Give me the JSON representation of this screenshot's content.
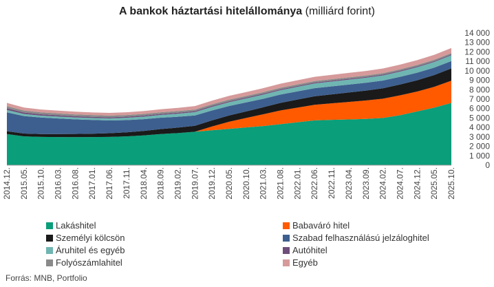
{
  "title": {
    "bold": "A bankok háztartási hitelállománya",
    "normal": " (milliárd forint)"
  },
  "source": "Forrás: MNB, Portfolio",
  "chart_data": {
    "type": "area",
    "stacked": true,
    "x": [
      "2014.12.",
      "2015.05.",
      "2015.10.",
      "2016.03.",
      "2016.08.",
      "2017.01.",
      "2017.06.",
      "2017.11.",
      "2018.04.",
      "2018.09.",
      "2019.02.",
      "2019.07.",
      "2019.12.",
      "2020.05.",
      "2020.10.",
      "2021.03.",
      "2021.08.",
      "2022.01.",
      "2022.06.",
      "2022.11.",
      "2023.04.",
      "2023.09.",
      "2024.02.",
      "2024.07.",
      "2024.12.",
      "2025.05.",
      "2025.10."
    ],
    "y_axis": {
      "position": "right",
      "min": 0,
      "max": 14000,
      "step": 1000,
      "tick_labels": [
        "0",
        "1 000",
        "2 000",
        "3 000",
        "4 000",
        "5 000",
        "6 000",
        "7 000",
        "8 000",
        "9 000",
        "10 000",
        "11 000",
        "12 000",
        "13 000",
        "14 000"
      ]
    },
    "grid": false,
    "legend_position": "bottom",
    "series": [
      {
        "name": "Lakáshitel",
        "color": "#0a9e7a",
        "values": [
          3300,
          3050,
          3000,
          2980,
          2970,
          2980,
          3000,
          3050,
          3150,
          3300,
          3400,
          3550,
          3700,
          3850,
          4000,
          4150,
          4350,
          4550,
          4750,
          4800,
          4850,
          4900,
          5000,
          5300,
          5700,
          6100,
          6600
        ]
      },
      {
        "name": "Babaváró hitel",
        "color": "#ff5a00",
        "values": [
          0,
          0,
          0,
          0,
          0,
          0,
          0,
          0,
          0,
          0,
          0,
          0,
          400,
          750,
          1000,
          1250,
          1450,
          1550,
          1650,
          1750,
          1850,
          1950,
          2050,
          2100,
          2100,
          2200,
          2350
        ]
      },
      {
        "name": "Személyi kölcsön",
        "color": "#1a1a1a",
        "values": [
          300,
          300,
          300,
          320,
          340,
          360,
          390,
          430,
          480,
          530,
          580,
          620,
          650,
          670,
          700,
          740,
          800,
          850,
          900,
          950,
          1000,
          1050,
          1100,
          1150,
          1200,
          1250,
          1300
        ]
      },
      {
        "name": "Szabad felhasználású jelzáloghitel",
        "color": "#3d5f8f",
        "values": [
          2000,
          1850,
          1750,
          1650,
          1550,
          1450,
          1350,
          1300,
          1250,
          1200,
          1150,
          1100,
          1050,
          1000,
          950,
          900,
          880,
          870,
          860,
          850,
          840,
          830,
          820,
          810,
          800,
          790,
          780
        ]
      },
      {
        "name": "Áruhitel és egyéb",
        "color": "#6fb5b2",
        "values": [
          250,
          220,
          200,
          200,
          200,
          210,
          220,
          240,
          260,
          290,
          320,
          350,
          380,
          400,
          420,
          440,
          460,
          480,
          500,
          510,
          520,
          530,
          540,
          560,
          580,
          600,
          620
        ]
      },
      {
        "name": "Autóhitel",
        "color": "#6e4e7a",
        "values": [
          180,
          160,
          150,
          140,
          130,
          125,
          120,
          118,
          115,
          113,
          112,
          110,
          108,
          106,
          104,
          102,
          100,
          99,
          98,
          97,
          96,
          95,
          94,
          93,
          92,
          91,
          90
        ]
      },
      {
        "name": "Folyószámlahitel",
        "color": "#8a8a8a",
        "values": [
          220,
          210,
          200,
          195,
          190,
          185,
          180,
          178,
          176,
          174,
          172,
          170,
          168,
          166,
          164,
          162,
          160,
          158,
          156,
          154,
          152,
          150,
          148,
          146,
          144,
          142,
          140
        ]
      },
      {
        "name": "Egyéb",
        "color": "#d69a9a",
        "values": [
          350,
          320,
          300,
          290,
          285,
          280,
          285,
          290,
          300,
          320,
          340,
          360,
          380,
          400,
          410,
          420,
          430,
          440,
          450,
          460,
          470,
          480,
          490,
          500,
          510,
          520,
          530
        ]
      }
    ]
  }
}
